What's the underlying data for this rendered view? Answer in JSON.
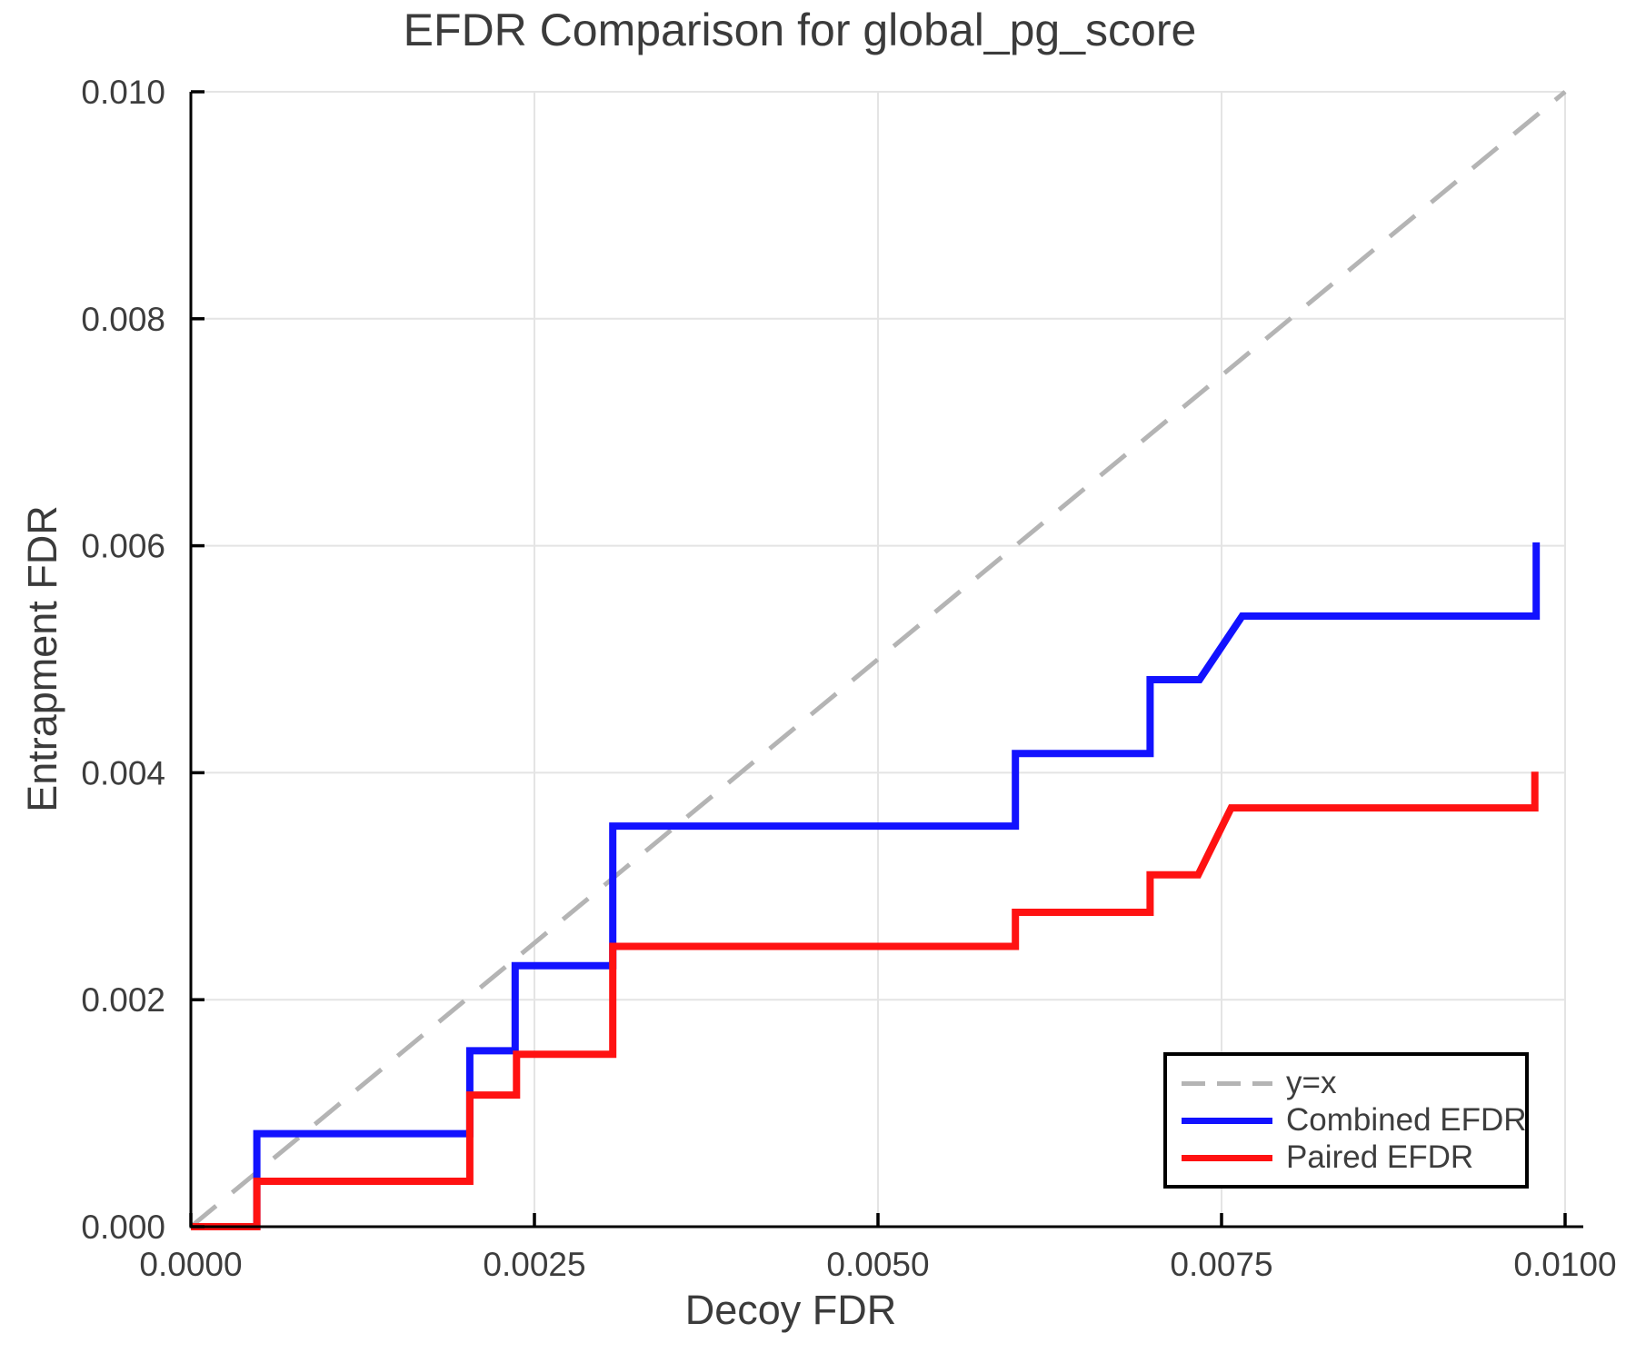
{
  "chart_data": {
    "type": "line",
    "subtype": "step_curves",
    "title": "EFDR Comparison for global_pg_score",
    "xlabel": "Decoy FDR",
    "ylabel": "Entrapment FDR",
    "xlim": [
      0.0,
      0.01
    ],
    "ylim": [
      0.0,
      0.01
    ],
    "x_ticks": [
      0.0,
      0.0025,
      0.005,
      0.0075,
      0.01
    ],
    "x_tick_labels": [
      "0.0000",
      "0.0025",
      "0.0050",
      "0.0075",
      "0.0100"
    ],
    "y_ticks": [
      0.0,
      0.002,
      0.004,
      0.006,
      0.008,
      0.01
    ],
    "y_tick_labels": [
      "0.000",
      "0.002",
      "0.004",
      "0.006",
      "0.008",
      "0.010"
    ],
    "grid": true,
    "grid_color": "#e4e4e4",
    "axis_color": "#000000",
    "text_color": "#3d3d3d",
    "legend_position": "bottom-right",
    "reference_line": {
      "name": "y=x",
      "style": "dashed",
      "color": "#b4b4b4",
      "from": [
        0.0,
        0.0
      ],
      "to": [
        0.01,
        0.01
      ]
    },
    "points_format": "polyline vertices [decoy_fdr, entrapment_fdr] tracing the drawn step curve",
    "series": [
      {
        "name": "Combined EFDR",
        "color": "#1212ff",
        "points": [
          [
            0.0,
            0.0
          ],
          [
            0.00048,
            0.0
          ],
          [
            0.00048,
            0.00082
          ],
          [
            0.00203,
            0.00082
          ],
          [
            0.00203,
            0.00155
          ],
          [
            0.00236,
            0.00155
          ],
          [
            0.00236,
            0.0023
          ],
          [
            0.00307,
            0.0023
          ],
          [
            0.00307,
            0.00353
          ],
          [
            0.006,
            0.00353
          ],
          [
            0.006,
            0.00417
          ],
          [
            0.00698,
            0.00417
          ],
          [
            0.00698,
            0.00482
          ],
          [
            0.00734,
            0.00482
          ],
          [
            0.00765,
            0.00538
          ],
          [
            0.00979,
            0.00538
          ],
          [
            0.00979,
            0.00603
          ]
        ]
      },
      {
        "name": "Paired EFDR",
        "color": "#ff1212",
        "points": [
          [
            0.0,
            0.0
          ],
          [
            0.00048,
            0.0
          ],
          [
            0.00048,
            0.0004
          ],
          [
            0.00203,
            0.0004
          ],
          [
            0.00203,
            0.00116
          ],
          [
            0.00237,
            0.00116
          ],
          [
            0.00237,
            0.00152
          ],
          [
            0.00307,
            0.00152
          ],
          [
            0.00307,
            0.00247
          ],
          [
            0.006,
            0.00247
          ],
          [
            0.006,
            0.00277
          ],
          [
            0.00698,
            0.00277
          ],
          [
            0.00698,
            0.0031
          ],
          [
            0.00733,
            0.0031
          ],
          [
            0.00757,
            0.00369
          ],
          [
            0.00978,
            0.00369
          ],
          [
            0.00978,
            0.00401
          ]
        ]
      }
    ],
    "legend_items": [
      {
        "label": "y=x"
      },
      {
        "label": "Combined EFDR"
      },
      {
        "label": "Paired EFDR"
      }
    ]
  }
}
